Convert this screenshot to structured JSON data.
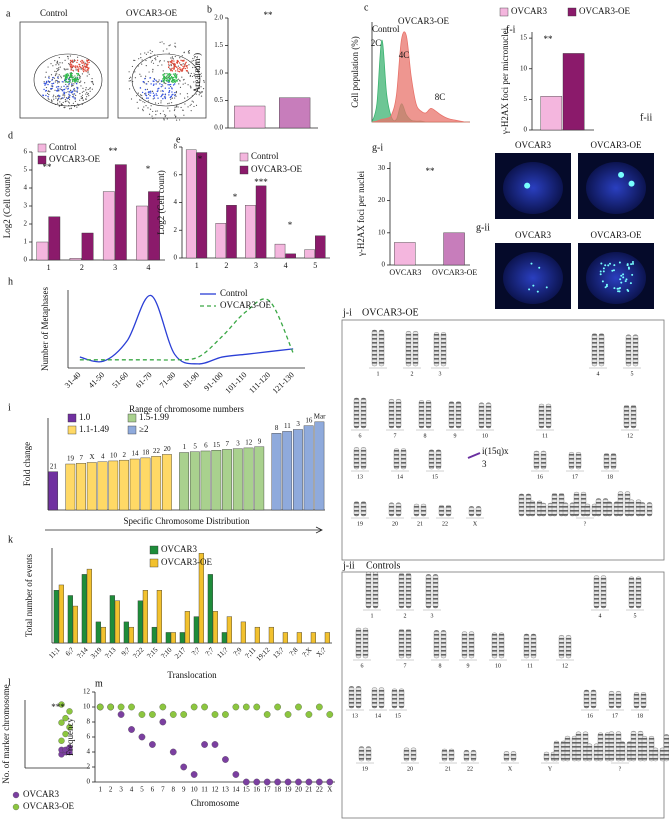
{
  "chart_data": [
    {
      "panel": "b",
      "type": "bar",
      "ylabel": "Area(mm²)",
      "series": [
        {
          "values": [
            0.4,
            0.55
          ],
          "colors": [
            "#f4b6de",
            "#c77dbb"
          ]
        }
      ],
      "ylim": [
        0,
        2
      ],
      "yticks": [
        {
          "value": 0,
          "label": "0.0"
        },
        {
          "value": 0.5,
          "label": "0.5"
        },
        {
          "value": 1,
          "label": "1.0"
        },
        {
          "value": 1.5,
          "label": "1.5"
        },
        {
          "value": 2,
          "label": "2.0"
        }
      ],
      "annotations": [
        "**"
      ]
    },
    {
      "panel": "c",
      "type": "area",
      "ylabel": "Cell population (%)",
      "x": [
        0,
        1,
        2,
        3,
        4,
        5,
        6,
        7,
        8,
        9,
        10,
        11,
        12,
        13,
        14,
        15,
        16,
        17,
        18,
        19,
        20
      ],
      "xlim": [
        0,
        20
      ],
      "series": [
        {
          "name": "Control",
          "color": "#3cb371",
          "values": [
            0,
            20,
            90,
            30,
            5,
            3,
            20,
            8,
            2,
            1,
            1,
            0,
            0,
            0,
            0,
            0,
            0,
            0,
            0,
            0,
            0
          ]
        },
        {
          "name": "OVCAR3-OE",
          "color": "#e8736b",
          "values": [
            0,
            1,
            3,
            4,
            8,
            30,
            90,
            95,
            50,
            20,
            12,
            10,
            15,
            12,
            8,
            5,
            3,
            2,
            1,
            0,
            0
          ]
        }
      ],
      "ylim": [
        0,
        110
      ],
      "annotations": [
        "2C",
        "4C",
        "8C"
      ]
    },
    {
      "panel": "f-i",
      "type": "bar",
      "ylabel": "γ-H2AX foci per micronuclei",
      "series": [
        {
          "name": "OVCAR3",
          "color": "#f4b6de",
          "values": [
            5.5
          ]
        },
        {
          "name": "OVCAR3-OE",
          "color": "#8b1a6b",
          "values": [
            12.5
          ]
        }
      ],
      "ylim": [
        0,
        16
      ],
      "yticks": [
        0,
        5,
        10,
        15
      ],
      "annotations": [
        "**"
      ]
    },
    {
      "panel": "d",
      "type": "bar",
      "ylabel": "Log2 (Cell count)",
      "categories": [
        "1",
        "2",
        "3",
        "4"
      ],
      "series": [
        {
          "name": "Control",
          "color": "#f4b6de",
          "values": [
            1,
            0.1,
            3.8,
            3
          ]
        },
        {
          "name": "OVCAR3-OE",
          "color": "#8b1a6b",
          "values": [
            2.4,
            1.5,
            5.3,
            3.8
          ]
        }
      ],
      "ylim": [
        0,
        6
      ],
      "yticks": [
        0,
        1,
        2,
        3,
        4,
        5,
        6
      ],
      "annotations": [
        "**",
        "**",
        "*"
      ]
    },
    {
      "panel": "e",
      "type": "bar",
      "ylabel": "Log2 (Cell count)",
      "categories": [
        "1",
        "2",
        "3",
        "4",
        "5"
      ],
      "series": [
        {
          "name": "Control",
          "color": "#f4b6de",
          "values": [
            7.8,
            2.5,
            3.8,
            1,
            0.6
          ]
        },
        {
          "name": "OVCAR3-OE",
          "color": "#8b1a6b",
          "values": [
            7.6,
            3.8,
            5.2,
            0.3,
            1.6
          ]
        }
      ],
      "ylim": [
        0,
        8
      ],
      "yticks": [
        0,
        2,
        4,
        6,
        8
      ],
      "annotations": [
        "*",
        "*",
        "***",
        "*"
      ]
    },
    {
      "panel": "g-i",
      "type": "bar",
      "ylabel": "γ-H2AX foci per nuclei",
      "categories": [
        "OVCAR3",
        "OVCAR3-OE"
      ],
      "series": [
        {
          "values": [
            7,
            10
          ],
          "colors": [
            "#f4b6de",
            "#c77dbb"
          ]
        }
      ],
      "ylim": [
        0,
        32
      ],
      "yticks": [
        0,
        10,
        20,
        30
      ],
      "annotations": [
        "**"
      ]
    },
    {
      "panel": "h",
      "type": "line",
      "ylabel": "Number of Metaphases",
      "xlabel": "Range of chromosome numbers",
      "categories": [
        "31-40",
        "41-50",
        "51-60",
        "61-70",
        "71-80",
        "81-90",
        "91-100",
        "101-110",
        "111-120",
        "121-130"
      ],
      "series": [
        {
          "name": "Control",
          "color": "#2b3fd6",
          "values": [
            3,
            0,
            15,
            48,
            5,
            -2,
            3,
            5,
            7,
            9
          ]
        },
        {
          "name": "OVCAR3-OE",
          "color": "#3aa845",
          "dash": true,
          "values": [
            1,
            1,
            1,
            1,
            1,
            3,
            18,
            36,
            44,
            6
          ]
        }
      ],
      "ylim": [
        -5,
        52
      ]
    },
    {
      "panel": "i",
      "type": "bar",
      "ylabel": "Fold change",
      "xlabel": "Specific Chromosome Distribution",
      "categories": [
        "21",
        "19",
        "7",
        "X",
        "4",
        "10",
        "2",
        "14",
        "18",
        "22",
        "20",
        "1",
        "5",
        "6",
        "15",
        "7",
        "3",
        "12",
        "9",
        "8",
        "11",
        "3",
        "16",
        "Mar"
      ],
      "labels_on_top": true,
      "series": [
        {
          "values": [
            1.0,
            1.2,
            1.22,
            1.24,
            1.26,
            1.28,
            1.3,
            1.33,
            1.36,
            1.4,
            1.45,
            1.5,
            1.52,
            1.54,
            1.56,
            1.58,
            1.6,
            1.62,
            1.65,
            2.0,
            2.05,
            2.1,
            2.2,
            2.3
          ],
          "colors": [
            "#7030a0",
            "#ffd966",
            "#ffd966",
            "#ffd966",
            "#ffd966",
            "#ffd966",
            "#ffd966",
            "#ffd966",
            "#ffd966",
            "#ffd966",
            "#ffd966",
            "#a9d18e",
            "#a9d18e",
            "#a9d18e",
            "#a9d18e",
            "#a9d18e",
            "#a9d18e",
            "#a9d18e",
            "#a9d18e",
            "#8faadc",
            "#8faadc",
            "#8faadc",
            "#8faadc",
            "#8faadc"
          ]
        }
      ],
      "legend": [
        {
          "name": "1.0",
          "color": "#7030a0"
        },
        {
          "name": "1.1-1.49",
          "color": "#ffd966"
        },
        {
          "name": "1.5-1.99",
          "color": "#a9d18e"
        },
        {
          "name": "≥2",
          "color": "#8faadc"
        }
      ],
      "ylim": [
        0,
        2.4
      ]
    },
    {
      "panel": "k",
      "type": "bar",
      "ylabel": "Total number of events",
      "xlabel": "Translocation",
      "categories": [
        "11;1",
        "6;?",
        "?;14",
        "3;19",
        "?;13",
        "9;?",
        "?;22",
        "?;15",
        "?;10",
        "2;17",
        "?;?",
        "?;7",
        "11;?",
        "?;9",
        "?;11",
        "19;12",
        "13;?",
        "?;8",
        "?;X",
        "X;?"
      ],
      "series": [
        {
          "name": "OVCAR3",
          "color": "#1e8c3a",
          "values": [
            10,
            9,
            13,
            4,
            9,
            4,
            8,
            3,
            2,
            2,
            5,
            13,
            2,
            0,
            0,
            0,
            0,
            0,
            0,
            0
          ]
        },
        {
          "name": "OVCAR3-OE",
          "color": "#f2c12e",
          "values": [
            11,
            7,
            14,
            3,
            8,
            3,
            10,
            10,
            2,
            6,
            17,
            6,
            5,
            4,
            3,
            3,
            2,
            2,
            2,
            2
          ]
        }
      ],
      "ylim": [
        0,
        18
      ]
    },
    {
      "panel": "l",
      "type": "strip",
      "ylabel": "No. of marker chromosome",
      "series": [
        {
          "name": "OVCAR3",
          "color": "#7b3fa0",
          "values": [
            6,
            7,
            7,
            8,
            8,
            9
          ]
        },
        {
          "name": "OVCAR3-OE",
          "color": "#8cc63f",
          "values": [
            12,
            15,
            18,
            20,
            22,
            25,
            28
          ]
        }
      ],
      "ylim": [
        0,
        30
      ],
      "annotations": [
        "***"
      ]
    },
    {
      "panel": "m",
      "type": "scatter",
      "ylabel": "Frequency",
      "xlabel": "Chromosome",
      "categories": [
        "1",
        "2",
        "3",
        "4",
        "5",
        "6",
        "7",
        "8",
        "9",
        "10",
        "11",
        "12",
        "13",
        "14",
        "15",
        "16",
        "17",
        "18",
        "19",
        "20",
        "21",
        "22",
        "X"
      ],
      "series": [
        {
          "color": "#7b3fa0",
          "values": [
            10,
            10,
            9,
            7,
            6,
            5,
            8,
            4,
            2,
            1,
            5,
            5,
            3,
            1,
            0,
            0,
            0,
            0,
            0,
            0,
            0,
            0,
            0
          ]
        },
        {
          "color": "#8cc63f",
          "values": [
            10,
            10,
            10,
            10,
            9,
            9,
            10,
            9,
            9,
            10,
            10,
            9,
            9,
            10,
            10,
            10,
            9,
            10,
            9,
            10,
            9,
            10,
            9
          ]
        }
      ],
      "ylim": [
        0,
        12
      ],
      "yticks": [
        0,
        2,
        4,
        6,
        8,
        10,
        12
      ]
    }
  ],
  "flow_cytometry": {
    "panel": "a",
    "labels": [
      "Control",
      "OVCAR3-OE"
    ]
  },
  "microscopy": {
    "panels": [
      "f-ii",
      "g-ii"
    ],
    "labels": [
      "OVCAR3",
      "OVCAR3-OE"
    ]
  },
  "karyotypes": {
    "panels": [
      "j-i",
      "j-ii"
    ],
    "titles": [
      "OVCAR3-OE",
      "Controls"
    ],
    "numbers": [
      "1",
      "2",
      "3",
      "4",
      "5",
      "6",
      "7",
      "8",
      "9",
      "10",
      "11",
      "12",
      "13",
      "14",
      "15",
      "16",
      "17",
      "18",
      "19",
      "20",
      "21",
      "22",
      "X",
      "Y",
      "?"
    ],
    "annotation": "i(15q)x",
    "annotation_count": "3"
  }
}
